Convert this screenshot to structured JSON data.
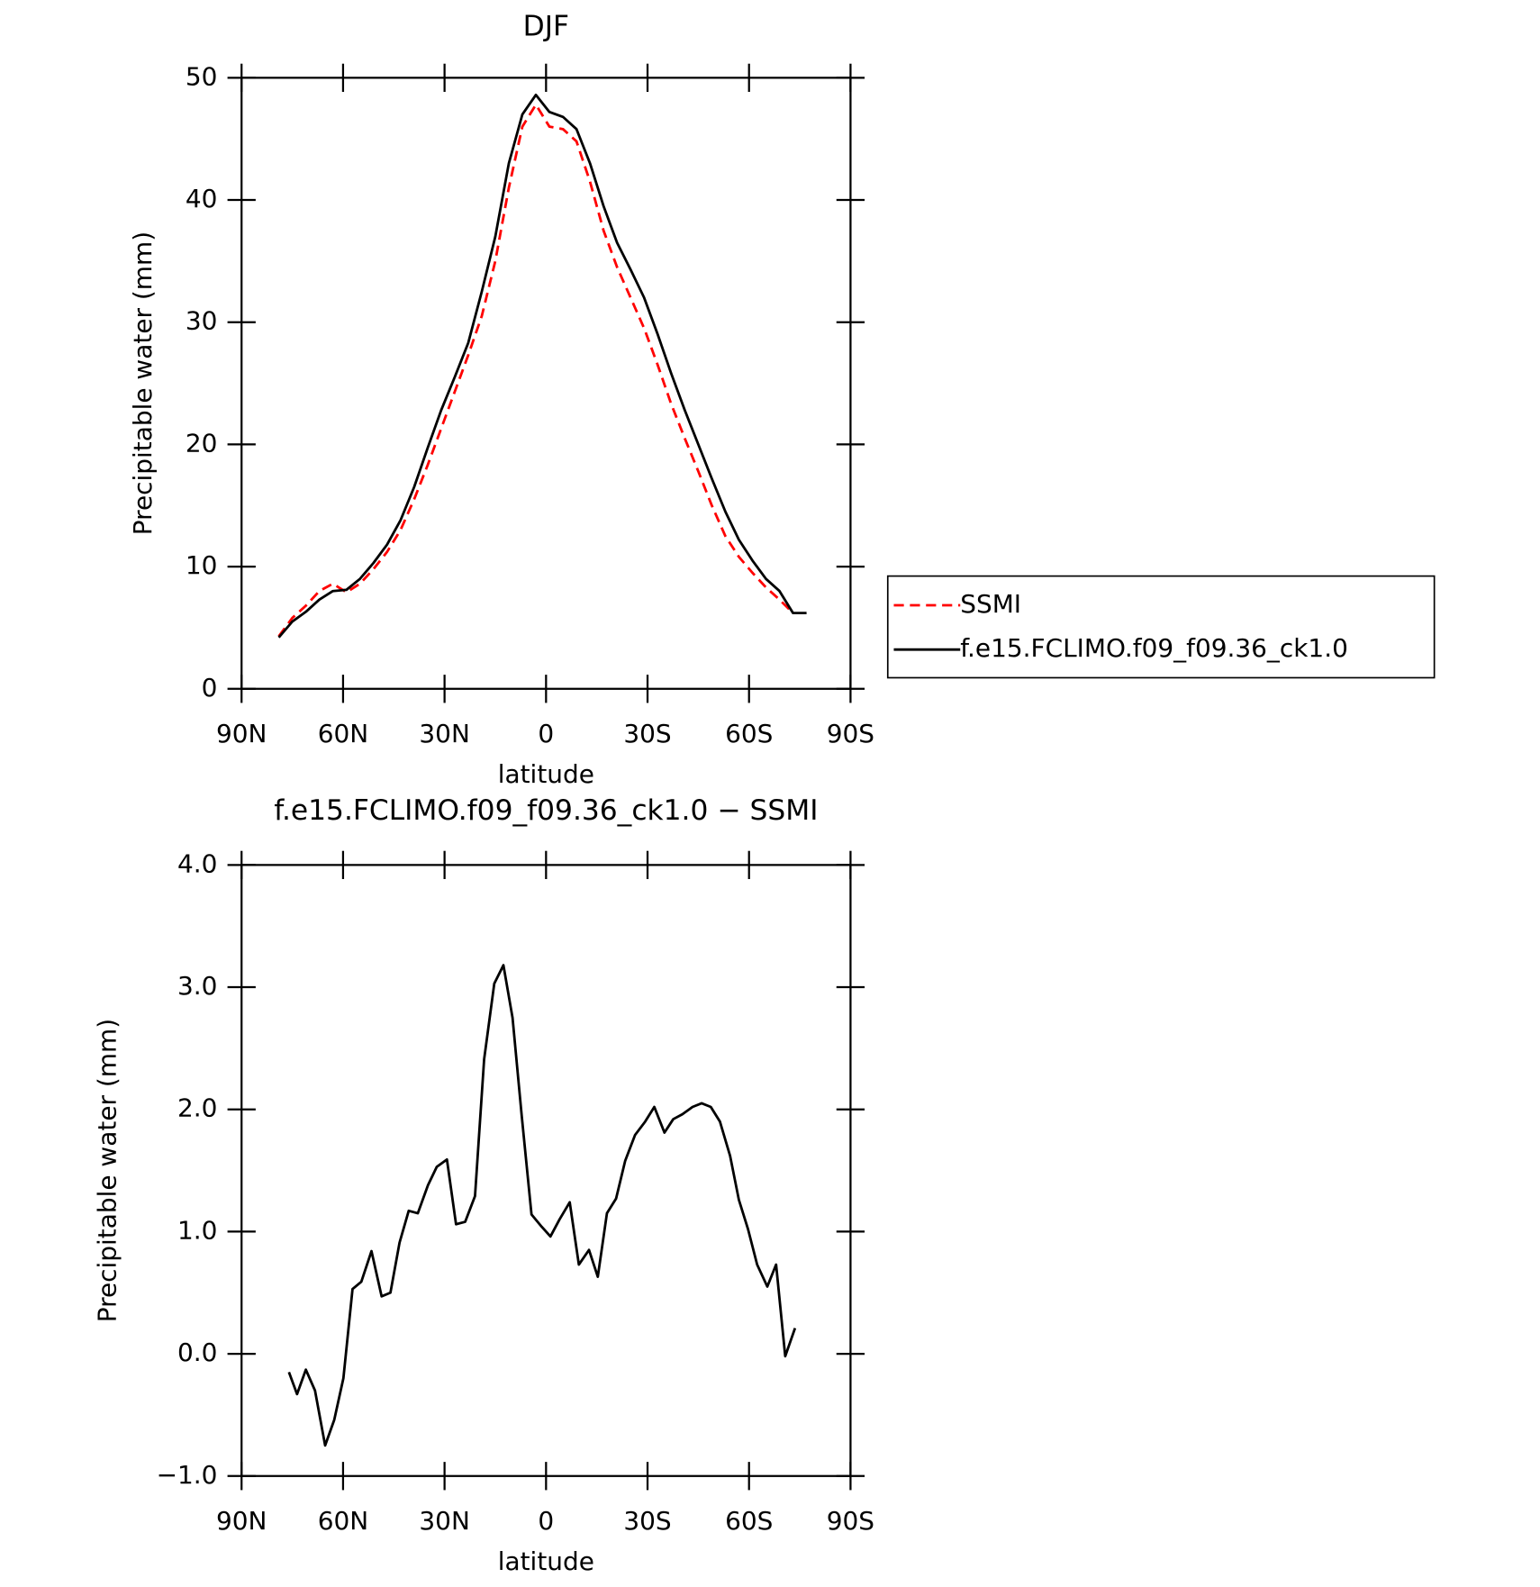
{
  "chart_data": [
    {
      "type": "line",
      "title": "DJF",
      "xlabel": "latitude",
      "ylabel": "Precipitable water (mm)",
      "x": [
        79,
        75,
        71,
        67,
        63,
        59,
        55,
        51,
        47,
        43,
        39,
        35,
        31,
        27,
        23,
        19,
        15,
        11,
        7,
        3,
        -1,
        -5,
        -9,
        -13,
        -17,
        -21,
        -25,
        -29,
        -33,
        -37,
        -41,
        -45,
        -49,
        -53,
        -57,
        -61,
        -65,
        -69,
        -73,
        -77
      ],
      "series": [
        {
          "name": "SSMI",
          "color": "#ff0000",
          "line_style": "dashed",
          "values": [
            4.3,
            5.8,
            6.8,
            8.0,
            8.6,
            7.9,
            8.6,
            9.8,
            11.2,
            13.0,
            15.5,
            18.3,
            21.3,
            24.3,
            27.3,
            30.5,
            35.0,
            41.0,
            46.0,
            47.8,
            46.0,
            45.8,
            44.8,
            41.5,
            37.5,
            34.5,
            32.0,
            29.5,
            26.5,
            23.3,
            20.5,
            17.8,
            15.0,
            12.5,
            10.8,
            9.5,
            8.3,
            7.3,
            6.2,
            null
          ]
        },
        {
          "name": "f.e15.FCLIMO.f09_f09.36_ck1.0",
          "color": "#000000",
          "line_style": "solid",
          "values": [
            4.2,
            5.5,
            6.3,
            7.3,
            8.0,
            8.1,
            9.0,
            10.3,
            11.8,
            13.8,
            16.5,
            19.7,
            22.8,
            25.5,
            28.3,
            32.5,
            37.0,
            43.0,
            47.0,
            48.6,
            47.2,
            46.8,
            45.8,
            43.0,
            39.5,
            36.5,
            34.3,
            32.0,
            29.0,
            25.8,
            22.8,
            20.0,
            17.2,
            14.5,
            12.2,
            10.5,
            9.0,
            8.0,
            6.2,
            6.2
          ]
        }
      ],
      "xlim": [
        90,
        -90
      ],
      "xticks": [
        {
          "value": 90,
          "label": "90N"
        },
        {
          "value": 60,
          "label": "60N"
        },
        {
          "value": 30,
          "label": "30N"
        },
        0,
        {
          "value": -30,
          "label": "30S"
        },
        {
          "value": -60,
          "label": "60S"
        },
        {
          "value": -90,
          "label": "90S"
        }
      ],
      "ylim": [
        0,
        50
      ],
      "yticks": [
        0,
        10,
        20,
        30,
        40,
        50
      ],
      "legend": "right"
    },
    {
      "type": "line",
      "title": "f.e15.FCLIMO.f09_f09.36_ck1.0 − SSMI",
      "xlabel": "latitude",
      "ylabel": "Precipitable water (mm)",
      "x": [
        76.0,
        73.6,
        71.0,
        68.3,
        65.3,
        62.6,
        59.9,
        57.2,
        54.6,
        51.6,
        48.6,
        46.0,
        43.3,
        40.6,
        37.9,
        34.9,
        32.3,
        29.3,
        26.6,
        23.9,
        21.0,
        18.3,
        15.3,
        12.6,
        9.9,
        7.2,
        4.3,
        1.3,
        -1.3,
        -4.0,
        -7.0,
        -9.7,
        -12.7,
        -15.3,
        -18.0,
        -20.7,
        -23.4,
        -26.3,
        -29.3,
        -32.0,
        -35.0,
        -37.6,
        -40.3,
        -43.3,
        -46.0,
        -48.7,
        -51.4,
        -54.4,
        -57.0,
        -59.7,
        -62.4,
        -65.4,
        -68.0,
        -70.7,
        -73.6
      ],
      "series": [
        {
          "color": "#000000",
          "line_style": "solid",
          "values": [
            -0.15,
            -0.33,
            -0.13,
            -0.3,
            -0.75,
            -0.54,
            -0.2,
            0.53,
            0.59,
            0.84,
            0.47,
            0.5,
            0.91,
            1.17,
            1.15,
            1.38,
            1.53,
            1.59,
            1.06,
            1.08,
            1.29,
            2.41,
            3.03,
            3.18,
            2.75,
            1.95,
            1.14,
            1.04,
            0.96,
            1.1,
            1.24,
            0.73,
            0.85,
            0.63,
            1.15,
            1.27,
            1.58,
            1.79,
            1.9,
            2.02,
            1.81,
            1.92,
            1.96,
            2.02,
            2.05,
            2.02,
            1.9,
            1.62,
            1.26,
            1.02,
            0.73,
            0.55,
            0.73,
            -0.02,
            0.21
          ]
        }
      ],
      "xlim": [
        90,
        -90
      ],
      "xticks": [
        {
          "value": 90,
          "label": "90N"
        },
        {
          "value": 60,
          "label": "60N"
        },
        {
          "value": 30,
          "label": "30N"
        },
        0,
        {
          "value": -30,
          "label": "30S"
        },
        {
          "value": -60,
          "label": "60S"
        },
        {
          "value": -90,
          "label": "90S"
        }
      ],
      "ylim": [
        -1,
        4
      ],
      "yticks": [
        {
          "value": -1,
          "label": "−1.0"
        },
        {
          "value": 0,
          "label": "0.0"
        },
        {
          "value": 1,
          "label": "1.0"
        },
        {
          "value": 2,
          "label": "2.0"
        },
        {
          "value": 3,
          "label": "3.0"
        },
        {
          "value": 4,
          "label": "4.0"
        }
      ]
    }
  ]
}
